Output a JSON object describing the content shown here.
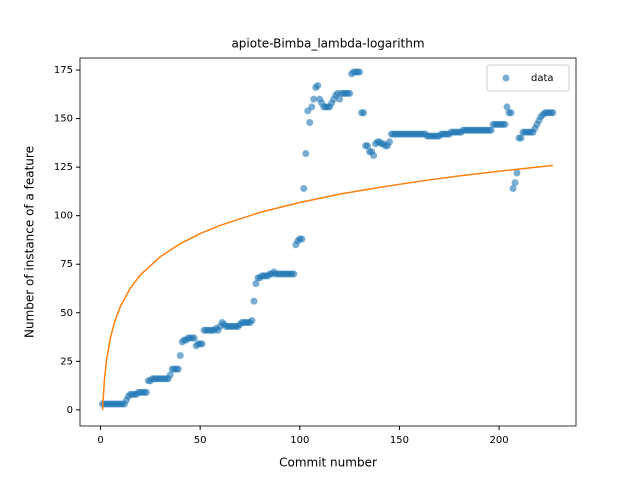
{
  "chart_data": {
    "type": "scatter",
    "title": "apiote-Bimba_lambda-logarithm",
    "xlabel": "Commit number",
    "ylabel": "Number of instance of a feature",
    "xlim": [
      -10.3,
      238.6
    ],
    "ylim": [
      -8.3,
      181.2
    ],
    "xticks": [
      0,
      50,
      100,
      150,
      200
    ],
    "yticks": [
      0,
      25,
      50,
      75,
      100,
      125,
      150,
      175
    ],
    "legend": "upper right",
    "series": [
      {
        "name": "data",
        "type": "scatter",
        "color": "#1f77b4",
        "x": [
          1,
          2,
          3,
          4,
          5,
          6,
          7,
          8,
          9,
          10,
          11,
          12,
          13,
          14,
          15,
          16,
          17,
          18,
          19,
          20,
          21,
          22,
          23,
          24,
          25,
          26,
          27,
          28,
          29,
          30,
          31,
          32,
          33,
          34,
          35,
          36,
          37,
          38,
          39,
          40,
          41,
          42,
          43,
          44,
          45,
          46,
          47,
          48,
          49,
          50,
          51,
          52,
          53,
          54,
          55,
          56,
          57,
          58,
          59,
          60,
          61,
          62,
          63,
          64,
          65,
          66,
          67,
          68,
          69,
          70,
          71,
          72,
          73,
          74,
          75,
          76,
          77,
          78,
          79,
          80,
          81,
          82,
          83,
          84,
          85,
          86,
          87,
          88,
          89,
          90,
          91,
          92,
          93,
          94,
          95,
          96,
          97,
          98,
          99,
          100,
          101,
          102,
          103,
          104,
          105,
          106,
          107,
          108,
          109,
          110,
          111,
          112,
          113,
          114,
          115,
          116,
          117,
          118,
          119,
          120,
          121,
          122,
          123,
          124,
          125,
          126,
          127,
          128,
          129,
          130,
          131,
          132,
          133,
          134,
          135,
          136,
          137,
          138,
          139,
          140,
          141,
          142,
          143,
          144,
          145,
          146,
          147,
          148,
          149,
          150,
          151,
          152,
          153,
          154,
          155,
          156,
          157,
          158,
          159,
          160,
          161,
          162,
          163,
          164,
          165,
          166,
          167,
          168,
          169,
          170,
          171,
          172,
          173,
          174,
          175,
          176,
          177,
          178,
          179,
          180,
          181,
          182,
          183,
          184,
          185,
          186,
          187,
          188,
          189,
          190,
          191,
          192,
          193,
          194,
          195,
          196,
          197,
          198,
          199,
          200,
          201,
          202,
          203,
          204,
          205,
          206,
          207,
          208,
          209,
          210,
          211,
          212,
          213,
          214,
          215,
          216,
          217,
          218,
          219,
          220,
          221,
          222,
          223,
          224,
          225,
          226,
          227
        ],
        "values": [
          3,
          3,
          3,
          3,
          3,
          3,
          3,
          3,
          3,
          3,
          3,
          3,
          5,
          7,
          8,
          8,
          8,
          8,
          9,
          9,
          9,
          9,
          9,
          15,
          15,
          16,
          16,
          16,
          16,
          16,
          16,
          16,
          16,
          16,
          18,
          21,
          21,
          21,
          21,
          28,
          35,
          36,
          36,
          37,
          37,
          37,
          37,
          33,
          34,
          34,
          34,
          41,
          41,
          41,
          41,
          41,
          41,
          42,
          41,
          43,
          45,
          44,
          43,
          43,
          43,
          43,
          43,
          43,
          43,
          44,
          45,
          45,
          45,
          45,
          45,
          46,
          56,
          65,
          68,
          68,
          69,
          69,
          69,
          69,
          70,
          70,
          71,
          70,
          70,
          70,
          70,
          70,
          70,
          70,
          70,
          70,
          70,
          85,
          87,
          88,
          88,
          114,
          132,
          154,
          148,
          156,
          160,
          166,
          167,
          160,
          158,
          156,
          156,
          156,
          156,
          158,
          160,
          162,
          163,
          160,
          163,
          163,
          163,
          163,
          163,
          173,
          174,
          174,
          174,
          174,
          153,
          153,
          136,
          136,
          133,
          133,
          131,
          137,
          138,
          138,
          137,
          137,
          136,
          136,
          138,
          142,
          142,
          142,
          142,
          142,
          142,
          142,
          142,
          142,
          142,
          142,
          142,
          142,
          142,
          142,
          142,
          142,
          142,
          141,
          141,
          141,
          141,
          141,
          141,
          141,
          142,
          142,
          142,
          142,
          142,
          143,
          143,
          143,
          143,
          143,
          143,
          144,
          144,
          144,
          144,
          144,
          144,
          144,
          144,
          144,
          144,
          144,
          144,
          144,
          144,
          144,
          147,
          147,
          147,
          147,
          147,
          147,
          147,
          156,
          153,
          153,
          114,
          117,
          122,
          140,
          140,
          143,
          143,
          143,
          143,
          143,
          143,
          145,
          147,
          149,
          151,
          152,
          153,
          153,
          153,
          153,
          153
        ]
      },
      {
        "type": "line",
        "color": "#ff7f0e",
        "x": [
          1,
          2,
          3,
          5,
          7,
          10,
          15,
          20,
          30,
          40,
          50,
          60,
          80,
          100,
          120,
          140,
          160,
          180,
          200,
          227
        ],
        "values": [
          0,
          16.1,
          25.5,
          37.3,
          45.1,
          53.4,
          62.8,
          69.5,
          78.9,
          85.6,
          90.8,
          95.0,
          101.7,
          106.8,
          111.1,
          114.6,
          117.7,
          120.5,
          122.9,
          125.9
        ]
      }
    ]
  }
}
